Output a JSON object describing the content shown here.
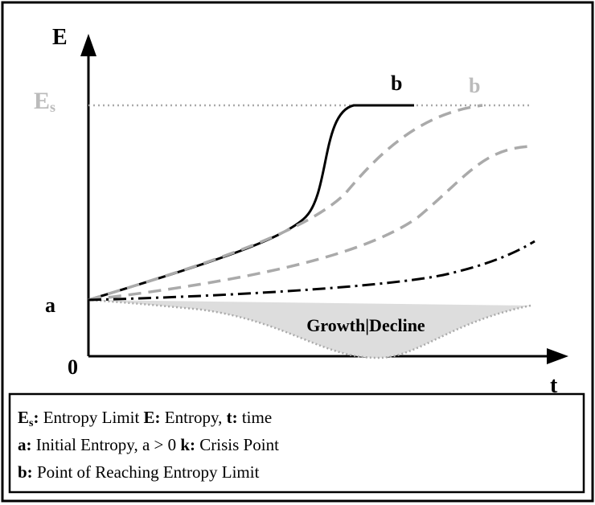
{
  "axes": {
    "y_label": "E",
    "x_label": "t",
    "origin": "0",
    "a_label": "a",
    "limit_label": {
      "main": "E",
      "sub": "s"
    }
  },
  "curve_labels": [
    "b",
    "b"
  ],
  "region_label": "Growth|Decline",
  "legend": {
    "lines": [
      [
        {
          "text": "E",
          "style": "bold"
        },
        {
          "text": "s",
          "style": "bold-sub"
        },
        {
          "text": ": ",
          "style": "bold"
        },
        {
          "text": "Entropy Limit ",
          "style": "normal"
        },
        {
          "text": "E: ",
          "style": "bold"
        },
        {
          "text": "Entropy, ",
          "style": "normal"
        },
        {
          "text": "t: ",
          "style": "bold"
        },
        {
          "text": "time",
          "style": "normal"
        }
      ],
      [
        {
          "text": "a: ",
          "style": "bold"
        },
        {
          "text": "Initial Entropy, a > 0 ",
          "style": "normal"
        },
        {
          "text": "k: ",
          "style": "bold"
        },
        {
          "text": "Crisis Point",
          "style": "normal"
        }
      ],
      [
        {
          "text": "b: ",
          "style": "bold"
        },
        {
          "text": "Point of Reaching Entropy Limit",
          "style": "normal"
        }
      ]
    ]
  }
}
